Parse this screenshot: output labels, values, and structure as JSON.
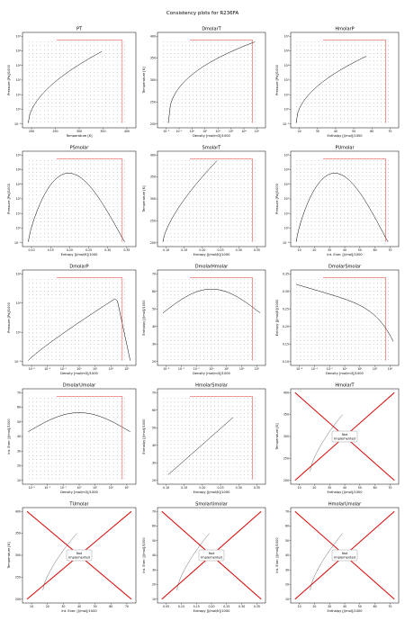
{
  "figure": {
    "suptitle": "Consistency plots for R236FA",
    "not_implemented_text": "Not\nImplemented"
  },
  "chart_data": [
    {
      "name": "PT",
      "title": "PT",
      "type": "scatter",
      "xlabel": "Temperature [K]",
      "ylabel": "Pressure [Pa]/1000",
      "xscale": "linear",
      "yscale": "log",
      "xlim": [
        170,
        412
      ],
      "ylim": [
        0.1,
        100000
      ],
      "xticks": [
        "200",
        "250",
        "300",
        "350",
        "400"
      ],
      "yticks": [
        "10⁻¹",
        "10⁰",
        "10¹",
        "10²",
        "10³",
        "10⁴",
        "10⁵"
      ],
      "curve": "pt",
      "implemented": true
    },
    {
      "name": "DmolarT",
      "title": "DmolarT",
      "type": "scatter",
      "xlabel": "Density [mol/m3]/1000",
      "ylabel": "Temperature [K]",
      "xscale": "log",
      "yscale": "linear",
      "xlim": [
        0.01,
        13
      ],
      "ylim": [
        170,
        410
      ],
      "xticks": [
        "10⁻²",
        "10⁻¹",
        "10⁰",
        "10¹",
        "10²",
        "10³",
        "10⁴",
        "10¹"
      ],
      "yticks": [
        "200",
        "250",
        "300",
        "350",
        "400"
      ],
      "curve": "dt",
      "implemented": true
    },
    {
      "name": "HmolarP",
      "title": "HmolarP",
      "type": "scatter",
      "xlabel": "Enthalpy [J/mol]/1000",
      "ylabel": "Pressure [Pa]/1000",
      "xscale": "linear",
      "yscale": "log",
      "xlim": [
        12,
        75
      ],
      "ylim": [
        0.1,
        100000
      ],
      "xticks": [
        "20",
        "30",
        "40",
        "50",
        "60",
        "70"
      ],
      "yticks": [
        "10⁻¹",
        "10⁰",
        "10¹",
        "10²",
        "10³",
        "10⁴",
        "10⁵"
      ],
      "curve": "hp",
      "implemented": true
    },
    {
      "name": "PSmolar",
      "title": "PSmolar",
      "type": "scatter",
      "xlabel": "Entropy [J/mol/K]/1000",
      "ylabel": "Pressure [Pa]/1000",
      "xscale": "linear",
      "yscale": "log",
      "xlim": [
        0.07,
        0.355
      ],
      "ylim": [
        0.1,
        100000
      ],
      "xticks": [
        "0.10",
        "0.15",
        "0.20",
        "0.25",
        "0.30",
        "0.35"
      ],
      "yticks": [
        "10⁻¹",
        "10⁰",
        "10¹",
        "10²",
        "10³",
        "10⁴",
        "10⁵"
      ],
      "curve": "sp",
      "implemented": true
    },
    {
      "name": "SmolarT",
      "title": "SmolarT",
      "type": "scatter",
      "xlabel": "Entropy [J/mol/K]/1000",
      "ylabel": "Temperature [K]",
      "xscale": "linear",
      "yscale": "linear",
      "xlim": [
        0.07,
        0.355
      ],
      "ylim": [
        170,
        410
      ],
      "xticks": [
        "0.10",
        "0.15",
        "0.20",
        "0.25",
        "0.30",
        "0.35"
      ],
      "yticks": [
        "200",
        "250",
        "300",
        "350",
        "400"
      ],
      "curve": "st",
      "implemented": true
    },
    {
      "name": "PUmolar",
      "title": "PUmolar",
      "type": "scatter",
      "xlabel": "Int. Ener. [J/mol]/1000",
      "ylabel": "Pressure [Pa]/1000",
      "xscale": "linear",
      "yscale": "log",
      "xlim": [
        6,
        72
      ],
      "ylim": [
        0.1,
        100000
      ],
      "xticks": [
        "10",
        "20",
        "30",
        "40",
        "50",
        "60",
        "70"
      ],
      "yticks": [
        "10⁻¹",
        "10⁰",
        "10¹",
        "10²",
        "10³",
        "10⁴",
        "10⁵"
      ],
      "curve": "up",
      "implemented": true
    },
    {
      "name": "DmolarP",
      "title": "DmolarP",
      "type": "scatter",
      "xlabel": "Density [mol/m3]/1000",
      "ylabel": "Pressure [Pa]/1000",
      "xscale": "log",
      "yscale": "log",
      "xlim": [
        0.0005,
        15
      ],
      "ylim": [
        0.01,
        100000
      ],
      "xticks": [
        "10⁻³",
        "10⁻²",
        "10⁻¹",
        "10⁰",
        "10¹",
        "10²",
        "10¹"
      ],
      "yticks": [
        "10⁻²",
        "10⁰",
        "10²",
        "10⁴"
      ],
      "curve": "dp",
      "implemented": true
    },
    {
      "name": "DmolarHmolar",
      "title": "DmolarHmolar",
      "type": "scatter",
      "xlabel": "Density [mol/m3]/1000",
      "ylabel": "Enthalpy [J/mol]/1000",
      "xscale": "log",
      "yscale": "linear",
      "xlim": [
        0.0005,
        15
      ],
      "ylim": [
        12,
        75
      ],
      "xticks": [
        "10⁻³",
        "10⁻²",
        "10⁻¹",
        "10⁰",
        "10¹",
        "10²",
        "10¹"
      ],
      "yticks": [
        "20",
        "30",
        "40",
        "50",
        "60",
        "70"
      ],
      "curve": "dh",
      "implemented": true
    },
    {
      "name": "DmolarSmolar",
      "title": "DmolarSmolar",
      "type": "scatter",
      "xlabel": "Density [mol/m3]/1000",
      "ylabel": "Entropy [J/mol/K]/1000",
      "xscale": "log",
      "yscale": "linear",
      "xlim": [
        0.0005,
        15
      ],
      "ylim": [
        0.07,
        0.355
      ],
      "xticks": [
        "10⁻³",
        "10⁻²",
        "10⁻¹",
        "10⁰",
        "10¹",
        "10²",
        "10¹"
      ],
      "yticks": [
        "0.10",
        "0.15",
        "0.20",
        "0.25",
        "0.30",
        "0.35"
      ],
      "curve": "ds",
      "implemented": true
    },
    {
      "name": "DmolarUmolar",
      "title": "DmolarUmolar",
      "type": "scatter",
      "xlabel": "Density [mol/m3]/1000",
      "ylabel": "Int. Ener. [J/mol]/1000",
      "xscale": "log",
      "yscale": "linear",
      "xlim": [
        0.0005,
        15
      ],
      "ylim": [
        10,
        72
      ],
      "xticks": [
        "10⁻³",
        "10⁻²",
        "10⁻¹",
        "10⁰",
        "10¹",
        "10²",
        "10¹"
      ],
      "yticks": [
        "10",
        "20",
        "30",
        "40",
        "50",
        "60",
        "70"
      ],
      "curve": "du",
      "implemented": true
    },
    {
      "name": "HmolarSmolar",
      "title": "HmolarSmolar",
      "type": "scatter",
      "xlabel": "Entropy [J/mol/K]/1000",
      "ylabel": "Enthalpy [J/mol]/1000",
      "xscale": "linear",
      "yscale": "linear",
      "xlim": [
        0.07,
        0.355
      ],
      "ylim": [
        12,
        75
      ],
      "xticks": [
        "0.10",
        "0.15",
        "0.20",
        "0.25",
        "0.30",
        "0.35"
      ],
      "yticks": [
        "20",
        "30",
        "40",
        "50",
        "60",
        "70"
      ],
      "curve": "sh",
      "implemented": true
    },
    {
      "name": "HmolarT",
      "title": "HmolarT",
      "type": "scatter",
      "xlabel": "Enthalpy [J/mol]/1000",
      "ylabel": "Temperature [K]",
      "xscale": "linear",
      "yscale": "linear",
      "xlim": [
        8,
        78
      ],
      "ylim": [
        170,
        420
      ],
      "xticks": [
        "10",
        "20",
        "30",
        "40",
        "50",
        "60",
        "70"
      ],
      "yticks": [
        "200",
        "250",
        "300",
        "350",
        "400"
      ],
      "curve": "ht",
      "implemented": false
    },
    {
      "name": "TUmolar",
      "title": "TUmolar",
      "type": "scatter",
      "xlabel": "Int. Ener. [J/mol]/1000",
      "ylabel": "Temperature [K]",
      "xscale": "linear",
      "yscale": "linear",
      "xlim": [
        8,
        74
      ],
      "ylim": [
        170,
        420
      ],
      "xticks": [
        "10",
        "20",
        "30",
        "40",
        "50",
        "60",
        "70"
      ],
      "yticks": [
        "200",
        "250",
        "300",
        "350",
        "400"
      ],
      "curve": "ut",
      "implemented": false
    },
    {
      "name": "SmolarUmolar",
      "title": "SmolarUmolar",
      "type": "scatter",
      "xlabel": "Entropy [J/mol/K]/1000",
      "ylabel": "Int. Ener. [J/mol]/1000",
      "xscale": "linear",
      "yscale": "linear",
      "xlim": [
        0.05,
        0.37
      ],
      "ylim": [
        8,
        74
      ],
      "xticks": [
        "0.05",
        "0.10",
        "0.15",
        "0.20",
        "0.25",
        "0.30",
        "0.35"
      ],
      "yticks": [
        "10",
        "20",
        "30",
        "40",
        "50",
        "60",
        "70"
      ],
      "curve": "su",
      "implemented": false
    },
    {
      "name": "HmolarUmolar",
      "title": "HmolarUmolar",
      "type": "scatter",
      "xlabel": "Enthalpy [J/mol]/1000",
      "ylabel": "Int. Ener. [J/mol]/1000",
      "xscale": "linear",
      "yscale": "linear",
      "xlim": [
        8,
        78
      ],
      "ylim": [
        8,
        74
      ],
      "xticks": [
        "10",
        "20",
        "30",
        "40",
        "50",
        "60",
        "70"
      ],
      "yticks": [
        "10",
        "20",
        "30",
        "40",
        "50",
        "60",
        "70"
      ],
      "curve": "hu",
      "implemented": false
    }
  ]
}
